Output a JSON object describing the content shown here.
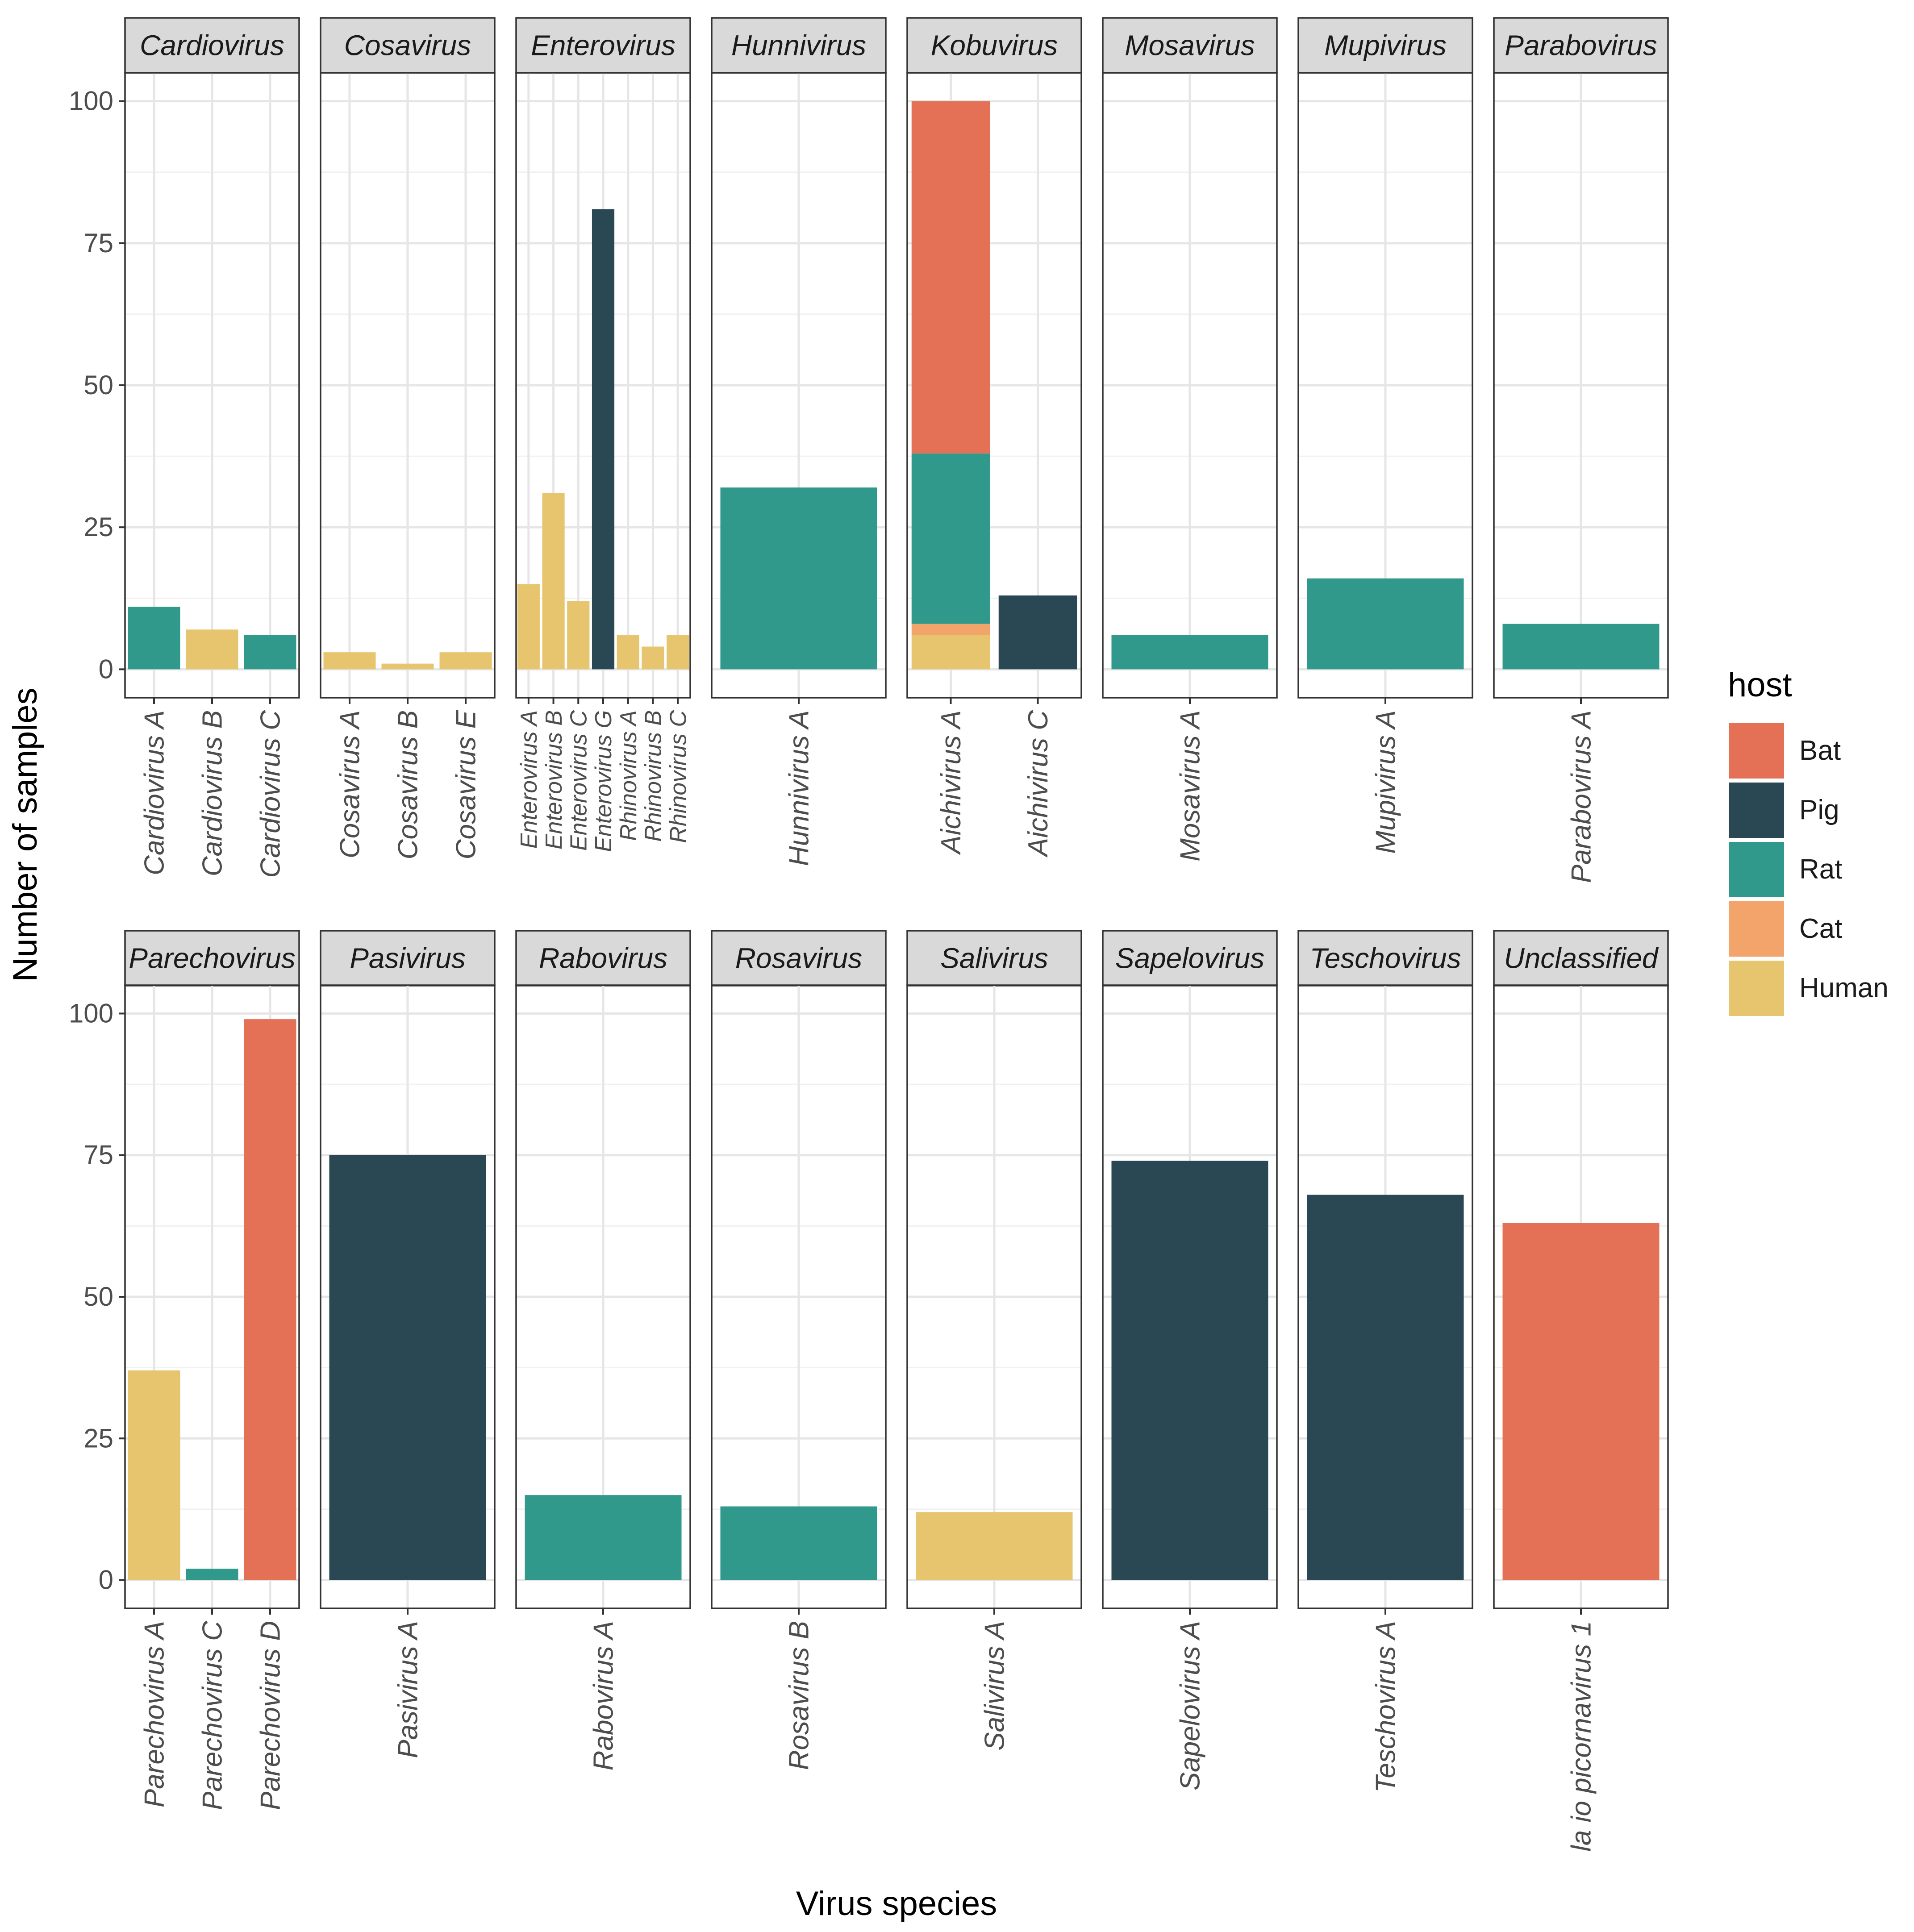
{
  "chart_data": {
    "type": "bar",
    "stacked": true,
    "facet": "genus",
    "xlabel": "Virus species",
    "ylabel": "Number of samples",
    "ylim": [
      0,
      105
    ],
    "yticks": [
      0,
      25,
      50,
      75,
      100
    ],
    "grid": true,
    "legend": {
      "title": "host",
      "position": "right",
      "entries": [
        {
          "name": "Bat",
          "color": "#E47056"
        },
        {
          "name": "Pig",
          "color": "#2A4854"
        },
        {
          "name": "Rat",
          "color": "#31998C"
        },
        {
          "name": "Cat",
          "color": "#F2A46A"
        },
        {
          "name": "Human",
          "color": "#E6C56E"
        }
      ]
    },
    "panels": [
      {
        "title": "Cardiovirus",
        "bars": [
          {
            "category": "Cardiovirus A",
            "segments": [
              {
                "host": "Rat",
                "value": 11
              }
            ]
          },
          {
            "category": "Cardiovirus B",
            "segments": [
              {
                "host": "Human",
                "value": 7
              }
            ]
          },
          {
            "category": "Cardiovirus C",
            "segments": [
              {
                "host": "Rat",
                "value": 6
              }
            ]
          }
        ]
      },
      {
        "title": "Cosavirus",
        "bars": [
          {
            "category": "Cosavirus A",
            "segments": [
              {
                "host": "Human",
                "value": 3
              }
            ]
          },
          {
            "category": "Cosavirus B",
            "segments": [
              {
                "host": "Human",
                "value": 1
              }
            ]
          },
          {
            "category": "Cosavirus E",
            "segments": [
              {
                "host": "Human",
                "value": 3
              }
            ]
          }
        ]
      },
      {
        "title": "Enterovirus",
        "bars": [
          {
            "category": "Enterovirus A",
            "segments": [
              {
                "host": "Human",
                "value": 15
              }
            ]
          },
          {
            "category": "Enterovirus B",
            "segments": [
              {
                "host": "Human",
                "value": 31
              }
            ]
          },
          {
            "category": "Enterovirus C",
            "segments": [
              {
                "host": "Human",
                "value": 12
              }
            ]
          },
          {
            "category": "Enterovirus G",
            "segments": [
              {
                "host": "Pig",
                "value": 81
              }
            ]
          },
          {
            "category": "Rhinovirus A",
            "segments": [
              {
                "host": "Human",
                "value": 6
              }
            ]
          },
          {
            "category": "Rhinovirus B",
            "segments": [
              {
                "host": "Human",
                "value": 4
              }
            ]
          },
          {
            "category": "Rhinovirus C",
            "segments": [
              {
                "host": "Human",
                "value": 6
              }
            ]
          }
        ]
      },
      {
        "title": "Hunnivirus",
        "bars": [
          {
            "category": "Hunnivirus A",
            "segments": [
              {
                "host": "Rat",
                "value": 32
              }
            ]
          }
        ]
      },
      {
        "title": "Kobuvirus",
        "bars": [
          {
            "category": "Aichivirus A",
            "segments": [
              {
                "host": "Human",
                "value": 6
              },
              {
                "host": "Cat",
                "value": 2
              },
              {
                "host": "Rat",
                "value": 30
              },
              {
                "host": "Bat",
                "value": 62
              }
            ]
          },
          {
            "category": "Aichivirus C",
            "segments": [
              {
                "host": "Pig",
                "value": 13
              }
            ]
          }
        ]
      },
      {
        "title": "Mosavirus",
        "bars": [
          {
            "category": "Mosavirus A",
            "segments": [
              {
                "host": "Rat",
                "value": 6
              }
            ]
          }
        ]
      },
      {
        "title": "Mupivirus",
        "bars": [
          {
            "category": "Mupivirus A",
            "segments": [
              {
                "host": "Rat",
                "value": 16
              }
            ]
          }
        ]
      },
      {
        "title": "Parabovirus",
        "bars": [
          {
            "category": "Parabovirus A",
            "segments": [
              {
                "host": "Rat",
                "value": 8
              }
            ]
          }
        ]
      },
      {
        "title": "Parechovirus",
        "bars": [
          {
            "category": "Parechovirus A",
            "segments": [
              {
                "host": "Human",
                "value": 37
              }
            ]
          },
          {
            "category": "Parechovirus C",
            "segments": [
              {
                "host": "Rat",
                "value": 2
              }
            ]
          },
          {
            "category": "Parechovirus D",
            "segments": [
              {
                "host": "Bat",
                "value": 99
              }
            ]
          }
        ]
      },
      {
        "title": "Pasivirus",
        "bars": [
          {
            "category": "Pasivirus A",
            "segments": [
              {
                "host": "Pig",
                "value": 75
              }
            ]
          }
        ]
      },
      {
        "title": "Rabovirus",
        "bars": [
          {
            "category": "Rabovirus A",
            "segments": [
              {
                "host": "Rat",
                "value": 15
              }
            ]
          }
        ]
      },
      {
        "title": "Rosavirus",
        "bars": [
          {
            "category": "Rosavirus B",
            "segments": [
              {
                "host": "Rat",
                "value": 13
              }
            ]
          }
        ]
      },
      {
        "title": "Salivirus",
        "bars": [
          {
            "category": "Salivirus A",
            "segments": [
              {
                "host": "Human",
                "value": 12
              }
            ]
          }
        ]
      },
      {
        "title": "Sapelovirus",
        "bars": [
          {
            "category": "Sapelovirus A",
            "segments": [
              {
                "host": "Pig",
                "value": 74
              }
            ]
          }
        ]
      },
      {
        "title": "Teschovirus",
        "bars": [
          {
            "category": "Teschovirus A",
            "segments": [
              {
                "host": "Pig",
                "value": 68
              }
            ]
          }
        ]
      },
      {
        "title": "Unclassified",
        "bars": [
          {
            "category": "la io picornavirus 1",
            "segments": [
              {
                "host": "Bat",
                "value": 63
              }
            ]
          }
        ]
      }
    ]
  }
}
